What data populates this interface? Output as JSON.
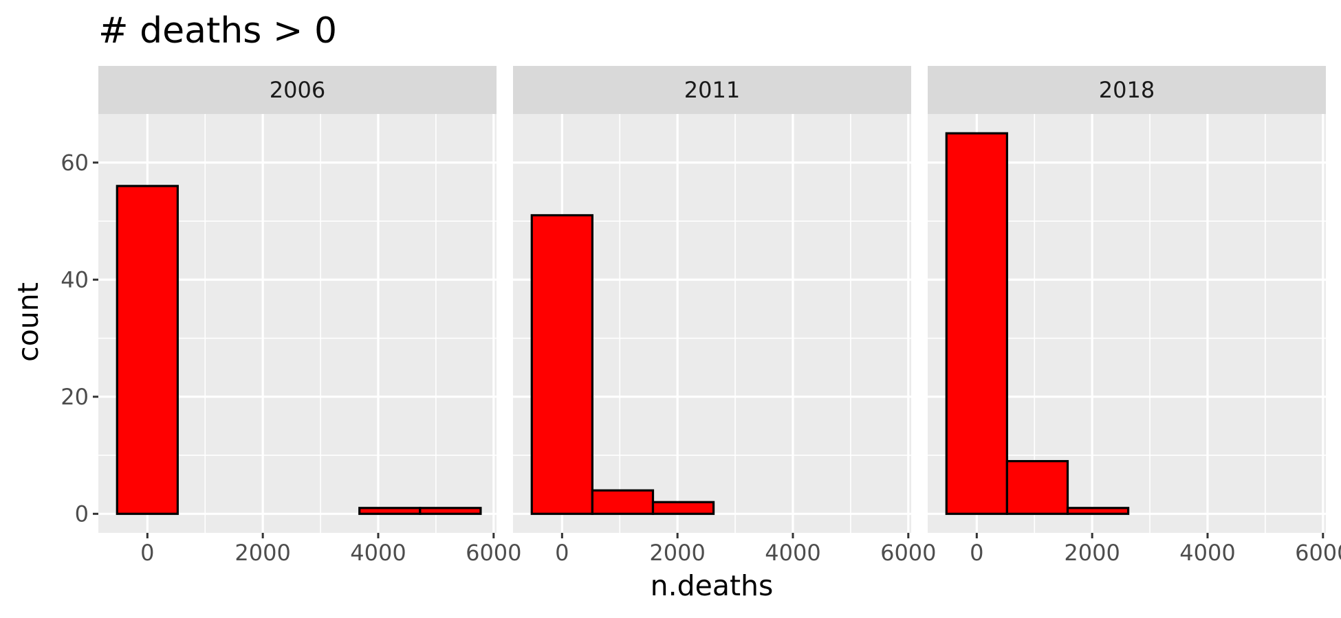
{
  "chart_data": {
    "type": "bar",
    "subtype": "faceted-histogram",
    "title": "# deaths > 0",
    "xlabel": "n.deaths",
    "ylabel": "count",
    "xlim": [
      -850,
      6050
    ],
    "ylim": [
      -3.25,
      68.3
    ],
    "x_ticks": [
      0,
      2000,
      4000,
      6000
    ],
    "y_ticks": [
      0,
      20,
      40,
      60
    ],
    "x_minor": [
      1000,
      3000,
      5000
    ],
    "y_minor": [
      10,
      30,
      50
    ],
    "bin_width": 1050,
    "bin_starts": [
      -525,
      525,
      1575,
      2625,
      3675,
      4725
    ],
    "colors": {
      "fill": "#ff0000",
      "outline": "#000000",
      "panel": "#ebebeb",
      "strip": "#d9d9d9"
    },
    "grid": true,
    "legend": "none",
    "facets": [
      {
        "label": "2006",
        "counts": [
          56,
          0,
          0,
          0,
          1,
          1
        ]
      },
      {
        "label": "2011",
        "counts": [
          51,
          4,
          2,
          0,
          0,
          0
        ]
      },
      {
        "label": "2018",
        "counts": [
          65,
          9,
          1,
          0,
          0,
          0
        ]
      }
    ]
  }
}
